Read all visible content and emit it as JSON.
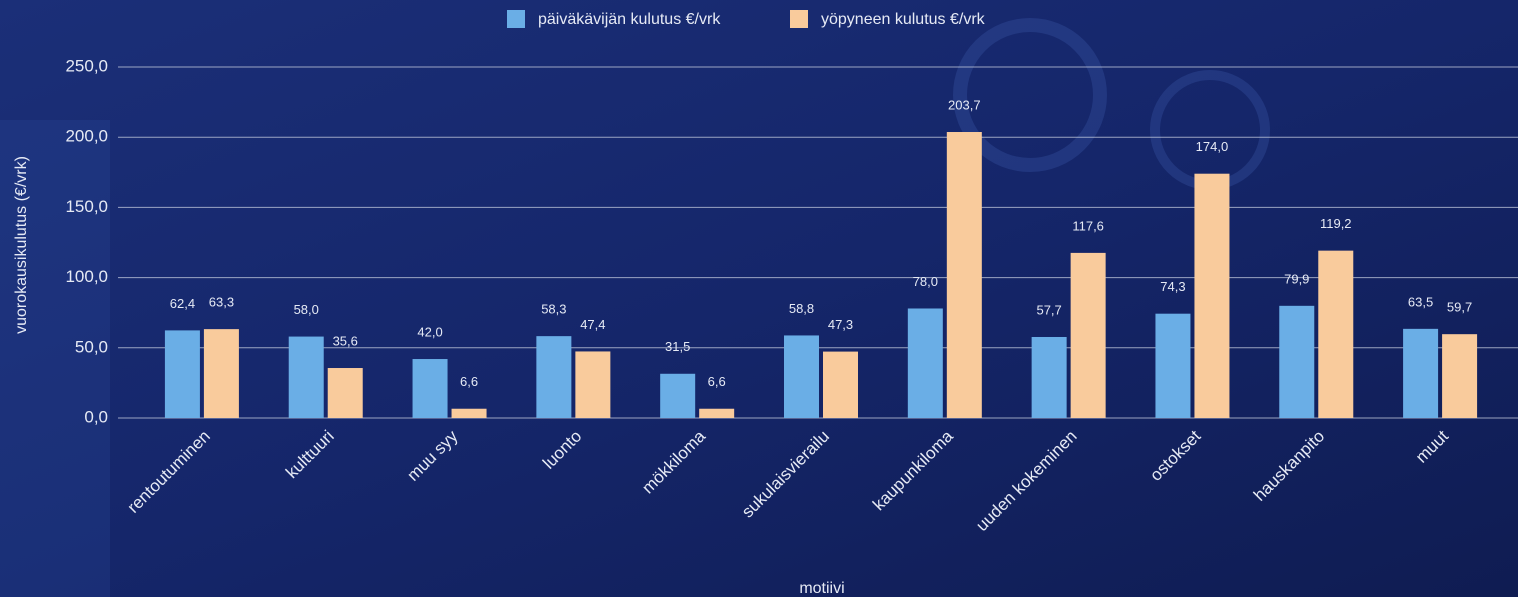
{
  "chart_data": {
    "type": "bar",
    "x_label": "motiivi",
    "y_label": "vuorokausikulutus (€/vrk)",
    "categories": [
      "rentoutuminen",
      "kulttuuri",
      "muu syy",
      "luonto",
      "mökkiloma",
      "sukulaisvierailu",
      "kaupunkiloma",
      "uuden kokeminen",
      "ostokset",
      "hauskanpito",
      "muut"
    ],
    "series": [
      {
        "name": "päiväkävijän kulutus €/vrk",
        "color": "#6aaee6",
        "values": [
          62.4,
          58.0,
          42.0,
          58.3,
          31.5,
          58.8,
          78.0,
          57.7,
          74.3,
          79.9,
          63.5
        ],
        "value_labels": [
          "62,4",
          "58,0",
          "42,0",
          "58,3",
          "31,5",
          "58,8",
          "78,0",
          "57,7",
          "74,3",
          "79,9",
          "63,5"
        ]
      },
      {
        "name": "yöpyneen kulutus €/vrk",
        "color": "#f9cb9c",
        "values": [
          63.3,
          35.6,
          6.6,
          47.4,
          6.6,
          47.3,
          203.7,
          117.6,
          174.0,
          119.2,
          59.7
        ],
        "value_labels": [
          "63,3",
          "35,6",
          "6,6",
          "47,4",
          "6,6",
          "47,3",
          "203,7",
          "117,6",
          "174,0",
          "119,2",
          "59,7"
        ]
      }
    ],
    "ylim": [
      0,
      250
    ],
    "yticks": [
      {
        "value": 0,
        "label": "0,0"
      },
      {
        "value": 50,
        "label": "50,0"
      },
      {
        "value": 100,
        "label": "100,0"
      },
      {
        "value": 150,
        "label": "150,0"
      },
      {
        "value": 200,
        "label": "200,0"
      },
      {
        "value": 250,
        "label": "250,0"
      }
    ],
    "grid": true,
    "legend": "top"
  }
}
